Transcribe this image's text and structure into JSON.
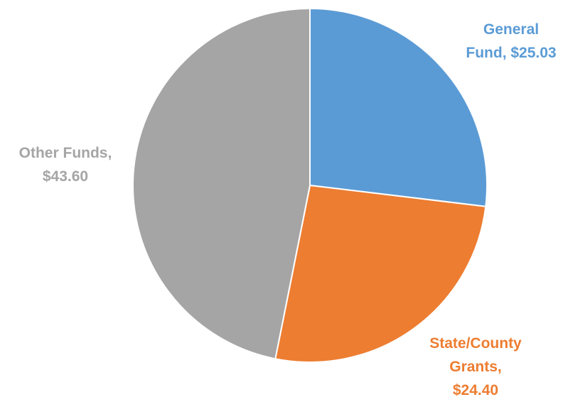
{
  "chart_data": {
    "type": "pie",
    "title": "",
    "categories": [
      "General Fund",
      "State/County Grants",
      "Other Funds"
    ],
    "values": [
      25.03,
      24.4,
      43.6
    ],
    "colors": [
      "#5B9BD5",
      "#ED7D31",
      "#A5A5A5"
    ],
    "data_labels": [
      [
        "General",
        "Fund, $25.03"
      ],
      [
        "State/County",
        "Grants,",
        "$24.40"
      ],
      [
        "Other Funds,",
        "$43.60"
      ]
    ],
    "start_angle_deg": 0,
    "direction": "clockwise",
    "legend": "none"
  }
}
